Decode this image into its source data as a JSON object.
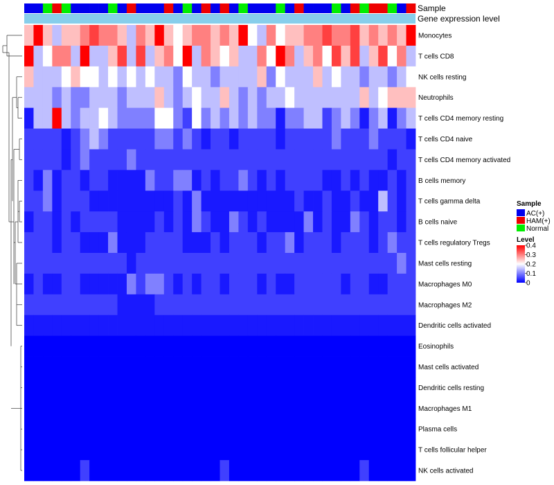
{
  "chart_data": {
    "type": "heatmap",
    "title": "",
    "annotations": [
      {
        "name": "Sample"
      },
      {
        "name": "Gene expression level",
        "color": "#87CEEB"
      }
    ],
    "sample_groups": [
      "AC",
      "AC",
      "N",
      "H",
      "N",
      "AC",
      "AC",
      "AC",
      "AC",
      "N",
      "AC",
      "H",
      "AC",
      "AC",
      "AC",
      "H",
      "AC",
      "N",
      "AC",
      "H",
      "AC",
      "H",
      "AC",
      "N",
      "AC",
      "AC",
      "AC",
      "N",
      "AC",
      "H",
      "AC",
      "AC",
      "AC",
      "N",
      "AC",
      "H",
      "N",
      "H",
      "H",
      "N",
      "AC",
      "H"
    ],
    "rows": [
      {
        "label": "Monocytes",
        "values": [
          0.25,
          0.4,
          0.25,
          0.15,
          0.25,
          0.25,
          0.3,
          0.35,
          0.3,
          0.3,
          0.25,
          0.15,
          0.3,
          0.25,
          0.4,
          0.25,
          0.2,
          0.25,
          0.3,
          0.3,
          0.25,
          0.3,
          0.25,
          0.4,
          0.2,
          0.15,
          0.3,
          0.2,
          0.25,
          0.25,
          0.3,
          0.3,
          0.35,
          0.3,
          0.3,
          0.35,
          0.25,
          0.3,
          0.25,
          0.3,
          0.25,
          0.4
        ]
      },
      {
        "label": "T cells CD8",
        "values": [
          0.4,
          0.15,
          0.2,
          0.3,
          0.3,
          0.15,
          0.4,
          0.15,
          0.15,
          0.25,
          0.35,
          0.15,
          0.35,
          0.15,
          0.25,
          0.3,
          0.2,
          0.4,
          0.15,
          0.3,
          0.25,
          0.2,
          0.25,
          0.15,
          0.15,
          0.3,
          0.2,
          0.4,
          0.3,
          0.15,
          0.25,
          0.3,
          0.2,
          0.35,
          0.25,
          0.35,
          0.15,
          0.25,
          0.35,
          0.2,
          0.3,
          0.15
        ]
      },
      {
        "label": "NK cells resting",
        "values": [
          0.25,
          0.15,
          0.15,
          0.15,
          0.2,
          0.25,
          0.2,
          0.2,
          0.15,
          0.2,
          0.15,
          0.2,
          0.15,
          0.2,
          0.15,
          0.15,
          0.1,
          0.2,
          0.15,
          0.15,
          0.1,
          0.15,
          0.15,
          0.15,
          0.15,
          0.25,
          0.1,
          0.2,
          0.15,
          0.15,
          0.15,
          0.25,
          0.15,
          0.2,
          0.15,
          0.15,
          0.1,
          0.15,
          0.15,
          0.1,
          0.15,
          0.2
        ]
      },
      {
        "label": "Neutrophils",
        "values": [
          0.15,
          0.15,
          0.15,
          0.1,
          0.15,
          0.1,
          0.1,
          0.15,
          0.15,
          0.15,
          0.1,
          0.15,
          0.15,
          0.15,
          0.25,
          0.15,
          0.1,
          0.15,
          0.2,
          0.15,
          0.15,
          0.25,
          0.15,
          0.1,
          0.15,
          0.1,
          0.15,
          0.15,
          0.2,
          0.15,
          0.15,
          0.15,
          0.15,
          0.15,
          0.15,
          0.15,
          0.25,
          0.15,
          0.2,
          0.25,
          0.25,
          0.25
        ]
      },
      {
        "label": "T cells CD4 memory resting",
        "values": [
          0.02,
          0.15,
          0.15,
          0.4,
          0.15,
          0.1,
          0.15,
          0.15,
          0.2,
          0.15,
          0.1,
          0.1,
          0.1,
          0.1,
          0.2,
          0.2,
          0.1,
          0.05,
          0.2,
          0.1,
          0.15,
          0.1,
          0.15,
          0.1,
          0.15,
          0.1,
          0.1,
          0.02,
          0.1,
          0.1,
          0.15,
          0.15,
          0.05,
          0.1,
          0.15,
          0.1,
          0.02,
          0.1,
          0.15,
          0.02,
          0.1,
          0.15
        ]
      },
      {
        "label": "T cells CD4 naive",
        "values": [
          0.05,
          0.05,
          0.05,
          0.05,
          0.02,
          0.05,
          0.1,
          0.15,
          0.1,
          0.05,
          0.05,
          0.05,
          0.05,
          0.05,
          0.1,
          0.1,
          0.05,
          0.1,
          0.05,
          0.02,
          0.05,
          0.05,
          0.02,
          0.05,
          0.05,
          0.05,
          0.05,
          0.02,
          0.05,
          0.05,
          0.05,
          0.05,
          0.05,
          0.1,
          0.05,
          0.05,
          0.05,
          0.1,
          0.05,
          0.05,
          0.05,
          0.02
        ]
      },
      {
        "label": "T cells CD4 memory activated",
        "values": [
          0.05,
          0.05,
          0.05,
          0.05,
          0.02,
          0.05,
          0.1,
          0.05,
          0.05,
          0.05,
          0.05,
          0.1,
          0.05,
          0.05,
          0.05,
          0.05,
          0.05,
          0.05,
          0.05,
          0.05,
          0.05,
          0.05,
          0.05,
          0.05,
          0.05,
          0.05,
          0.05,
          0.05,
          0.05,
          0.05,
          0.05,
          0.05,
          0.05,
          0.05,
          0.05,
          0.05,
          0.05,
          0.05,
          0.05,
          0.02,
          0.05,
          0.05
        ]
      },
      {
        "label": "B cells memory",
        "values": [
          0.05,
          0.02,
          0.1,
          0.02,
          0.05,
          0.05,
          0.02,
          0.05,
          0.05,
          0.02,
          0.02,
          0.02,
          0.02,
          0.1,
          0.05,
          0.05,
          0.1,
          0.1,
          0.02,
          0.05,
          0.02,
          0.05,
          0.05,
          0.1,
          0.05,
          0.02,
          0.05,
          0.02,
          0.05,
          0.05,
          0.05,
          0.05,
          0.02,
          0.02,
          0.05,
          0.02,
          0.05,
          0.02,
          0.02,
          0.05,
          0.02,
          0.05
        ]
      },
      {
        "label": "T cells gamma delta",
        "values": [
          0.05,
          0.05,
          0.1,
          0.02,
          0.05,
          0.05,
          0.05,
          0.02,
          0.02,
          0.02,
          0.02,
          0.02,
          0.02,
          0.02,
          0.02,
          0.02,
          0.05,
          0.02,
          0.1,
          0.02,
          0.02,
          0.02,
          0.02,
          0.02,
          0.02,
          0.02,
          0.02,
          0.02,
          0.02,
          0.05,
          0.02,
          0.02,
          0.05,
          0.02,
          0.02,
          0.05,
          0.02,
          0.02,
          0.15,
          0.05,
          0.02,
          0.05
        ]
      },
      {
        "label": "B cells naive",
        "values": [
          0.02,
          0.05,
          0.05,
          0.02,
          0.05,
          0.02,
          0.05,
          0.05,
          0.05,
          0.05,
          0.02,
          0.02,
          0.02,
          0.02,
          0.05,
          0.02,
          0.05,
          0.02,
          0.1,
          0.05,
          0.02,
          0.02,
          0.1,
          0.05,
          0.02,
          0.05,
          0.02,
          0.02,
          0.02,
          0.02,
          0.1,
          0.02,
          0.05,
          0.02,
          0.02,
          0.1,
          0.05,
          0.02,
          0.05,
          0.05,
          0.02,
          0.05
        ]
      },
      {
        "label": "T cells regulatory  Tregs",
        "values": [
          0.05,
          0.05,
          0.05,
          0.02,
          0.05,
          0.05,
          0.02,
          0.02,
          0.02,
          0.1,
          0.02,
          0.02,
          0.02,
          0.05,
          0.05,
          0.05,
          0.05,
          0.02,
          0.02,
          0.02,
          0.05,
          0.02,
          0.05,
          0.05,
          0.05,
          0.02,
          0.05,
          0.05,
          0.1,
          0.02,
          0.05,
          0.05,
          0.05,
          0.02,
          0.05,
          0.05,
          0.05,
          0.02,
          0.05,
          0.1,
          0.05,
          0.05
        ]
      },
      {
        "label": "Mast cells resting",
        "values": [
          0.05,
          0.05,
          0.05,
          0.05,
          0.05,
          0.05,
          0.05,
          0.05,
          0.05,
          0.05,
          0.05,
          0.02,
          0.05,
          0.05,
          0.05,
          0.05,
          0.05,
          0.05,
          0.05,
          0.05,
          0.05,
          0.05,
          0.05,
          0.05,
          0.05,
          0.05,
          0.05,
          0.05,
          0.05,
          0.05,
          0.05,
          0.05,
          0.05,
          0.05,
          0.05,
          0.05,
          0.05,
          0.05,
          0.05,
          0.05,
          0.1,
          0.05
        ]
      },
      {
        "label": "Macrophages M0",
        "values": [
          0.02,
          0.05,
          0.02,
          0.02,
          0.05,
          0.05,
          0.02,
          0.02,
          0.02,
          0.02,
          0.02,
          0.1,
          0.05,
          0.1,
          0.1,
          0.05,
          0.02,
          0.05,
          0.02,
          0.05,
          0.05,
          0.02,
          0.05,
          0.05,
          0.05,
          0.02,
          0.05,
          0.02,
          0.02,
          0.05,
          0.05,
          0.05,
          0.05,
          0.05,
          0.02,
          0.05,
          0.05,
          0.02,
          0.02,
          0.05,
          0.05,
          0.05
        ]
      },
      {
        "label": "Macrophages M2",
        "values": [
          0.05,
          0.05,
          0.05,
          0.05,
          0.05,
          0.05,
          0.05,
          0.05,
          0.05,
          0.05,
          0.02,
          0.02,
          0.02,
          0.02,
          0.05,
          0.05,
          0.05,
          0.05,
          0.05,
          0.05,
          0.05,
          0.05,
          0.05,
          0.05,
          0.05,
          0.05,
          0.05,
          0.05,
          0.05,
          0.05,
          0.05,
          0.05,
          0.05,
          0.05,
          0.05,
          0.05,
          0.05,
          0.05,
          0.05,
          0.05,
          0.05,
          0.05
        ]
      },
      {
        "label": "Dendritic cells activated",
        "values": [
          0.02,
          0.02,
          0.02,
          0.02,
          0.02,
          0.02,
          0.02,
          0.02,
          0.02,
          0.02,
          0.02,
          0.02,
          0.02,
          0.02,
          0.02,
          0.02,
          0.02,
          0.02,
          0.02,
          0.02,
          0.02,
          0.02,
          0.02,
          0.02,
          0.02,
          0.02,
          0.02,
          0.02,
          0.02,
          0.02,
          0.02,
          0.02,
          0.02,
          0.02,
          0.02,
          0.02,
          0.02,
          0.02,
          0.02,
          0.02,
          0.02,
          0.02
        ]
      },
      {
        "label": "Eosinophils",
        "values": [
          0,
          0,
          0,
          0,
          0,
          0,
          0,
          0,
          0,
          0,
          0,
          0,
          0,
          0,
          0,
          0,
          0,
          0,
          0,
          0,
          0,
          0,
          0,
          0,
          0,
          0,
          0,
          0,
          0,
          0,
          0,
          0,
          0,
          0,
          0,
          0,
          0,
          0,
          0,
          0,
          0,
          0
        ]
      },
      {
        "label": "Mast cells activated",
        "values": [
          0,
          0,
          0,
          0,
          0,
          0,
          0,
          0,
          0,
          0,
          0,
          0,
          0,
          0,
          0,
          0,
          0,
          0,
          0,
          0,
          0,
          0,
          0,
          0,
          0,
          0,
          0,
          0,
          0,
          0,
          0,
          0,
          0,
          0,
          0,
          0,
          0,
          0,
          0,
          0,
          0,
          0
        ]
      },
      {
        "label": "Dendritic cells resting",
        "values": [
          0,
          0,
          0,
          0,
          0,
          0,
          0,
          0,
          0,
          0,
          0,
          0,
          0,
          0,
          0,
          0,
          0,
          0,
          0,
          0,
          0,
          0,
          0,
          0,
          0,
          0,
          0,
          0,
          0,
          0,
          0,
          0,
          0,
          0,
          0,
          0,
          0,
          0,
          0,
          0,
          0,
          0
        ]
      },
      {
        "label": "Macrophages M1",
        "values": [
          0,
          0,
          0,
          0,
          0,
          0,
          0,
          0,
          0,
          0,
          0,
          0,
          0,
          0,
          0,
          0,
          0,
          0,
          0,
          0,
          0,
          0,
          0,
          0,
          0,
          0,
          0,
          0,
          0,
          0,
          0,
          0,
          0,
          0,
          0,
          0,
          0,
          0,
          0,
          0,
          0,
          0
        ]
      },
      {
        "label": "Plasma cells",
        "values": [
          0,
          0,
          0,
          0,
          0,
          0,
          0,
          0,
          0,
          0,
          0,
          0,
          0,
          0,
          0,
          0,
          0,
          0,
          0,
          0,
          0,
          0,
          0,
          0,
          0,
          0,
          0,
          0,
          0,
          0,
          0,
          0,
          0,
          0,
          0,
          0,
          0,
          0,
          0,
          0,
          0,
          0
        ]
      },
      {
        "label": "T cells follicular helper",
        "values": [
          0,
          0,
          0,
          0,
          0,
          0,
          0,
          0,
          0,
          0,
          0,
          0,
          0,
          0,
          0,
          0,
          0,
          0,
          0,
          0,
          0,
          0,
          0,
          0,
          0,
          0,
          0,
          0,
          0,
          0,
          0,
          0,
          0,
          0,
          0,
          0,
          0,
          0,
          0,
          0,
          0,
          0
        ]
      },
      {
        "label": "NK cells activated",
        "values": [
          0,
          0,
          0,
          0,
          0,
          0,
          0.05,
          0,
          0,
          0,
          0,
          0,
          0,
          0,
          0,
          0,
          0,
          0,
          0,
          0,
          0,
          0.05,
          0,
          0,
          0,
          0,
          0,
          0,
          0,
          0,
          0,
          0,
          0,
          0,
          0,
          0,
          0.05,
          0,
          0,
          0,
          0,
          0
        ]
      }
    ],
    "legend": {
      "sample": {
        "title": "Sample",
        "entries": [
          {
            "key": "AC",
            "label": "AC(+)",
            "color": "#0000EE"
          },
          {
            "key": "H",
            "label": "HAM(+)",
            "color": "#EE0000"
          },
          {
            "key": "N",
            "label": "Normal",
            "color": "#00EE00"
          }
        ]
      },
      "level": {
        "title": "Level",
        "ticks": [
          0.4,
          0.3,
          0.2,
          0.1,
          0
        ],
        "range": [
          0,
          0.4
        ]
      }
    },
    "color_scale": {
      "low": "#0000FF",
      "mid": "#FFFFFF",
      "high": "#FF0000",
      "midpoint": 0.2
    }
  }
}
